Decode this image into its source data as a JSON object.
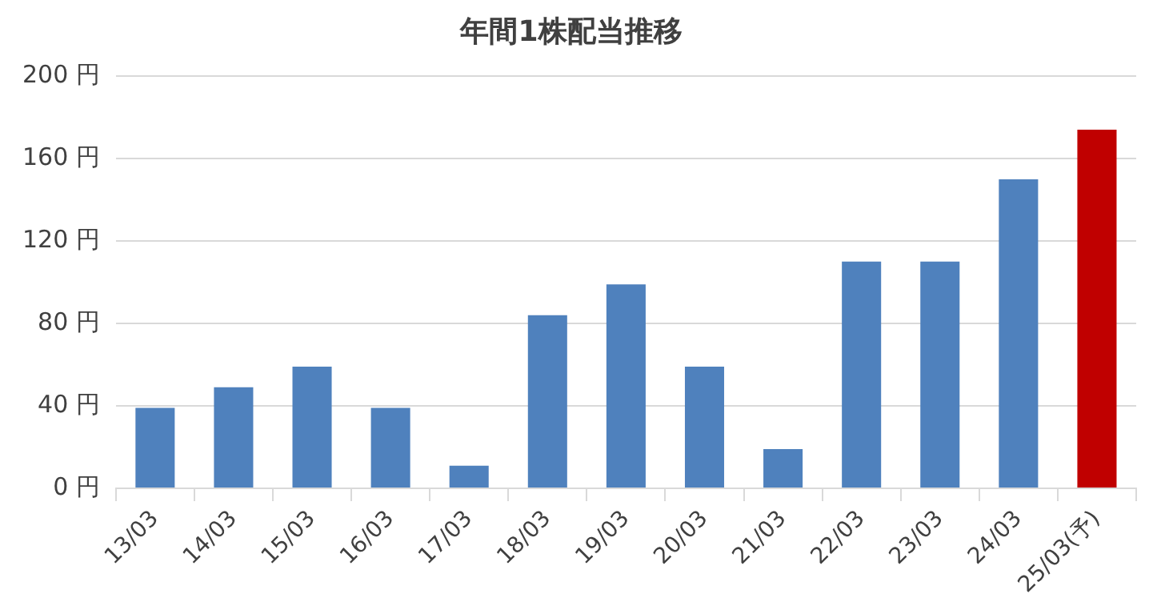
{
  "chart_data": {
    "type": "bar",
    "title": "年間1株配当推移",
    "categories": [
      "13/03",
      "14/03",
      "15/03",
      "16/03",
      "17/03",
      "18/03",
      "19/03",
      "20/03",
      "21/03",
      "22/03",
      "23/03",
      "24/03",
      "25/03(予)"
    ],
    "values": [
      39,
      49,
      59,
      39,
      11,
      84,
      99,
      59,
      19,
      110,
      110,
      150,
      174
    ],
    "colors": [
      "#4f81bd",
      "#4f81bd",
      "#4f81bd",
      "#4f81bd",
      "#4f81bd",
      "#4f81bd",
      "#4f81bd",
      "#4f81bd",
      "#4f81bd",
      "#4f81bd",
      "#4f81bd",
      "#4f81bd",
      "#c00000"
    ],
    "ylim": [
      0,
      200
    ],
    "yticks": [
      {
        "value": 0,
        "label": "0 円"
      },
      {
        "value": 40,
        "label": "40 円"
      },
      {
        "value": 80,
        "label": "80 円"
      },
      {
        "value": 120,
        "label": "120 円"
      },
      {
        "value": 160,
        "label": "160 円"
      },
      {
        "value": 200,
        "label": "200 円"
      }
    ],
    "grid": "y",
    "legend": false
  }
}
